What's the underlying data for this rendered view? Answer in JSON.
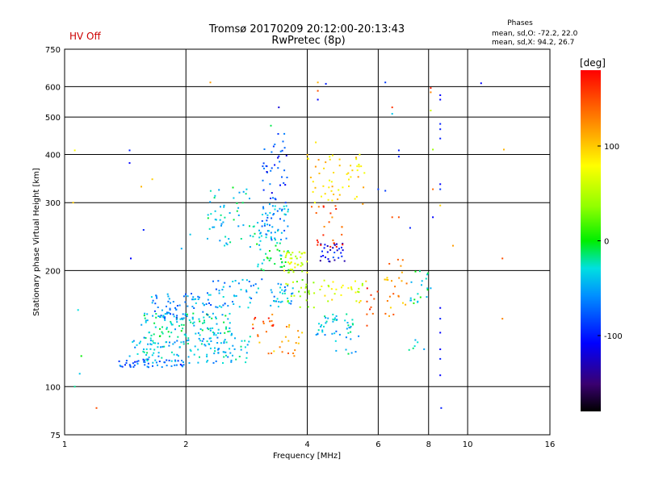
{
  "status": {
    "hv_label": "HV Off",
    "hv_color": "#cc0000"
  },
  "phases_box": {
    "title": "Phases",
    "line_o": "mean, sd,O: -72.2, 22.0",
    "line_x": "mean, sd,X:  94.2, 26.7"
  },
  "chart_data": {
    "type": "scatter",
    "title": "Tromsø 20170209 20:12:00-20:13:43",
    "subtitle": "RwPretec (8p)",
    "xlabel": "Frequency [MHz]",
    "ylabel": "Stationary phase Virtual Height [km]",
    "xscale": "log",
    "yscale": "log",
    "xlim": [
      1,
      16
    ],
    "ylim": [
      75,
      750
    ],
    "xticks": [
      1,
      2,
      4,
      6,
      8,
      10,
      16
    ],
    "xtick_labels": [
      "1",
      "2",
      "4",
      "6",
      "8",
      "10",
      "16"
    ],
    "yticks": [
      75,
      100,
      200,
      300,
      400,
      500,
      600,
      750
    ],
    "ytick_labels": [
      "75",
      "100",
      "200",
      "300",
      "400",
      "500",
      "600",
      "750"
    ],
    "grid": true,
    "colorbar": {
      "label": "[deg]",
      "range": [
        -180,
        180
      ],
      "ticks": [
        -100,
        0,
        100
      ],
      "tick_labels": [
        "-100",
        "0",
        "100"
      ],
      "colormap": "rainbow"
    },
    "points_note_only": "",
    "clusters": [
      {
        "f": [
          1.35,
          2.0
        ],
        "h": [
          112,
          118
        ],
        "c": -80,
        "n": 45
      },
      {
        "f": [
          1.45,
          2.9
        ],
        "h": [
          115,
          135
        ],
        "c": -40,
        "n": 140
      },
      {
        "f": [
          1.55,
          2.6
        ],
        "h": [
          135,
          155
        ],
        "c": -30,
        "n": 110
      },
      {
        "f": [
          1.6,
          2.3
        ],
        "h": [
          150,
          175
        ],
        "c": -60,
        "n": 70
      },
      {
        "f": [
          2.3,
          3.1
        ],
        "h": [
          160,
          190
        ],
        "c": -55,
        "n": 45
      },
      {
        "f": [
          2.2,
          3.0
        ],
        "h": [
          230,
          330
        ],
        "c": -30,
        "n": 55
      },
      {
        "f": [
          3.0,
          3.6
        ],
        "h": [
          240,
          300
        ],
        "c": -55,
        "n": 60
      },
      {
        "f": [
          3.0,
          3.6
        ],
        "h": [
          200,
          240
        ],
        "c": -20,
        "n": 35
      },
      {
        "f": [
          3.1,
          3.6
        ],
        "h": [
          300,
          460
        ],
        "c": -90,
        "n": 40
      },
      {
        "f": [
          3.5,
          4.0
        ],
        "h": [
          195,
          225
        ],
        "c": 60,
        "n": 40
      },
      {
        "f": [
          3.2,
          3.7
        ],
        "h": [
          160,
          185
        ],
        "c": -45,
        "n": 30
      },
      {
        "f": [
          3.5,
          4.2
        ],
        "h": [
          160,
          190
        ],
        "c": 30,
        "n": 25
      },
      {
        "f": [
          3.0,
          3.9
        ],
        "h": [
          120,
          145
        ],
        "c": 120,
        "n": 25
      },
      {
        "f": [
          2.9,
          3.3
        ],
        "h": [
          140,
          155
        ],
        "c": 150,
        "n": 12
      },
      {
        "f": [
          4.2,
          5.2
        ],
        "h": [
          135,
          155
        ],
        "c": -45,
        "n": 35
      },
      {
        "f": [
          4.3,
          5.0
        ],
        "h": [
          210,
          235
        ],
        "c": -110,
        "n": 30
      },
      {
        "f": [
          4.0,
          4.8
        ],
        "h": [
          300,
          400
        ],
        "c": 100,
        "n": 30
      },
      {
        "f": [
          4.1,
          4.9
        ],
        "h": [
          230,
          300
        ],
        "c": 150,
        "n": 25
      },
      {
        "f": [
          4.8,
          5.6
        ],
        "h": [
          290,
          400
        ],
        "c": 95,
        "n": 25
      },
      {
        "f": [
          4.3,
          5.6
        ],
        "h": [
          165,
          190
        ],
        "c": 70,
        "n": 30
      },
      {
        "f": [
          4.6,
          5.6
        ],
        "h": [
          120,
          150
        ],
        "c": -40,
        "n": 15
      },
      {
        "f": [
          5.6,
          6.0
        ],
        "h": [
          140,
          180
        ],
        "c": 160,
        "n": 10
      },
      {
        "f": [
          6.2,
          7.1
        ],
        "h": [
          150,
          215
        ],
        "c": 120,
        "n": 25
      },
      {
        "f": [
          7.2,
          8.0
        ],
        "h": [
          160,
          200
        ],
        "c": -20,
        "n": 20
      },
      {
        "f": [
          7.0,
          7.8
        ],
        "h": [
          120,
          135
        ],
        "c": -30,
        "n": 6
      }
    ],
    "points": [
      [
        1.06,
        410,
        80
      ],
      [
        1.05,
        300,
        100
      ],
      [
        1.08,
        158,
        -30
      ],
      [
        1.1,
        120,
        0
      ],
      [
        1.09,
        108,
        -40
      ],
      [
        1.06,
        100,
        -20
      ],
      [
        1.2,
        88,
        150
      ],
      [
        1.45,
        410,
        -100
      ],
      [
        1.45,
        380,
        -110
      ],
      [
        1.57,
        255,
        -100
      ],
      [
        1.46,
        215,
        -110
      ],
      [
        1.65,
        345,
        100
      ],
      [
        1.55,
        330,
        110
      ],
      [
        2.3,
        615,
        120
      ],
      [
        3.4,
        530,
        -120
      ],
      [
        3.25,
        475,
        -10
      ],
      [
        2.05,
        248,
        -40
      ],
      [
        1.95,
        228,
        -50
      ],
      [
        4.25,
        615,
        110
      ],
      [
        4.45,
        610,
        -100
      ],
      [
        4.25,
        585,
        150
      ],
      [
        4.25,
        555,
        -110
      ],
      [
        4.2,
        430,
        90
      ],
      [
        6.0,
        325,
        -90
      ],
      [
        6.25,
        615,
        -90
      ],
      [
        6.5,
        530,
        160
      ],
      [
        6.5,
        510,
        -40
      ],
      [
        6.75,
        410,
        -100
      ],
      [
        6.75,
        395,
        -100
      ],
      [
        6.25,
        322,
        -90
      ],
      [
        6.5,
        275,
        150
      ],
      [
        6.75,
        275,
        150
      ],
      [
        7.2,
        258,
        -100
      ],
      [
        8.1,
        595,
        170
      ],
      [
        8.1,
        580,
        130
      ],
      [
        8.1,
        520,
        60
      ],
      [
        8.55,
        570,
        -110
      ],
      [
        8.55,
        555,
        -110
      ],
      [
        8.55,
        480,
        -100
      ],
      [
        8.55,
        465,
        -100
      ],
      [
        8.55,
        440,
        -100
      ],
      [
        8.55,
        335,
        -110
      ],
      [
        8.55,
        325,
        -90
      ],
      [
        8.2,
        412,
        40
      ],
      [
        8.2,
        325,
        140
      ],
      [
        8.2,
        275,
        -110
      ],
      [
        8.1,
        180,
        -50
      ],
      [
        8.55,
        295,
        100
      ],
      [
        8.55,
        160,
        -110
      ],
      [
        8.55,
        150,
        -100
      ],
      [
        8.55,
        138,
        -110
      ],
      [
        8.55,
        125,
        -110
      ],
      [
        8.55,
        118,
        -100
      ],
      [
        8.55,
        107,
        -110
      ],
      [
        8.6,
        88,
        -100
      ],
      [
        9.2,
        232,
        120
      ],
      [
        10.8,
        612,
        -110
      ],
      [
        12.3,
        412,
        110
      ],
      [
        12.2,
        215,
        150
      ],
      [
        12.2,
        150,
        130
      ]
    ]
  }
}
